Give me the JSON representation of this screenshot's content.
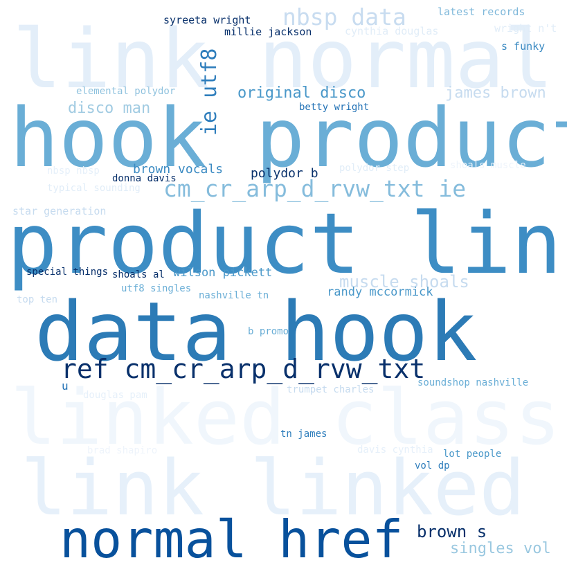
{
  "words": {
    "link_normal": {
      "text": "link normal",
      "color": "#e3eef9"
    },
    "hook_product": {
      "text": "hook product",
      "color": "#6aaed6"
    },
    "product_link": {
      "text": "product link",
      "color": "#3d8dc4"
    },
    "data_hook": {
      "text": "data hook",
      "color": "#2c7bb6"
    },
    "linked_class": {
      "text": "linked class",
      "color": "#f0f6fc"
    },
    "link_linked": {
      "text": "link linked",
      "color": "#e6f0fa"
    },
    "normal_href": {
      "text": "normal href",
      "color": "#08519c"
    },
    "ref_cm": {
      "text": "ref cm_cr_arp_d_rvw_txt",
      "color": "#08306b"
    },
    "cm_ie": {
      "text": "cm_cr_arp_d_rvw_txt ie",
      "color": "#85bcdc"
    },
    "ie_utf8": {
      "text": "ie utf8",
      "color": "#2f7ebc"
    },
    "nbsp_data": {
      "text": "nbsp data",
      "color": "#c8dcf0"
    },
    "original_disco": {
      "text": "original disco",
      "color": "#4a98c9"
    },
    "james_brown": {
      "text": "james brown",
      "color": "#c6dbef"
    },
    "disco_man": {
      "text": "disco man",
      "color": "#a1cbe2"
    },
    "muscle_shoals": {
      "text": "muscle shoals",
      "color": "#c6dbef"
    },
    "brown_s": {
      "text": "brown s",
      "color": "#08306b"
    },
    "singles_vol": {
      "text": "singles vol",
      "color": "#9ac8e0"
    },
    "brown_vocals": {
      "text": "brown vocals",
      "color": "#3a8ac2"
    },
    "polydor_b": {
      "text": "polydor b",
      "color": "#08306b"
    },
    "wilson_pickett": {
      "text": "wilson pickett",
      "color": "#4a98c9"
    },
    "randy_mccormick": {
      "text": "randy mccormick",
      "color": "#4a98c9"
    },
    "syreeta_wright": {
      "text": "syreeta wright",
      "color": "#08306b"
    },
    "millie_jackson": {
      "text": "millie jackson",
      "color": "#08306b"
    },
    "latest_records": {
      "text": "latest records",
      "color": "#7fb8da"
    },
    "cynthia_douglas": {
      "text": "cynthia douglas",
      "color": "#e1edf8"
    },
    "wright_nt": {
      "text": "wright n't",
      "color": "#e1edf8"
    },
    "s_funky": {
      "text": "s funky",
      "color": "#3a8ac2"
    },
    "elemental_polydor": {
      "text": "elemental polydor",
      "color": "#8fc2de"
    },
    "betty_wright": {
      "text": "betty wright",
      "color": "#2171b5"
    },
    "nbsp_nbsp": {
      "text": "nbsp nbsp",
      "color": "#e6f0fa"
    },
    "donna_davis": {
      "text": "donna davis",
      "color": "#08306b"
    },
    "polydor_step": {
      "text": "polydor step",
      "color": "#e1edf8"
    },
    "shoals_muscle": {
      "text": "shoals muscle",
      "color": "#eef4fb"
    },
    "typical_sounding": {
      "text": "typical sounding",
      "color": "#e1edf8"
    },
    "star_generation": {
      "text": "star generation",
      "color": "#c6dbef"
    },
    "special_things": {
      "text": "special things",
      "color": "#08306b"
    },
    "shoals_al": {
      "text": "shoals al",
      "color": "#08306b"
    },
    "utf8_singles": {
      "text": "utf8 singles",
      "color": "#6aaed6"
    },
    "top_ten": {
      "text": "top ten",
      "color": "#c6dbef"
    },
    "nashville_tn": {
      "text": "nashville tn",
      "color": "#6aaed6"
    },
    "b_promo": {
      "text": "b promo",
      "color": "#6aaed6"
    },
    "u": {
      "text": "u",
      "color": "#2171b5"
    },
    "douglas_pam": {
      "text": "douglas pam",
      "color": "#e6f0fa"
    },
    "trumpet_charles": {
      "text": "trumpet charles",
      "color": "#c6dbef"
    },
    "soundshop_nashville": {
      "text": "soundshop nashville",
      "color": "#6aaed6"
    },
    "tn_james": {
      "text": "tn james",
      "color": "#2f7ebc"
    },
    "brad_shapiro": {
      "text": "brad shapiro",
      "color": "#eef4fb"
    },
    "davis_cynthia": {
      "text": "davis cynthia",
      "color": "#e6f0fa"
    },
    "lot_people": {
      "text": "lot people",
      "color": "#4a98c9"
    },
    "vol_dp": {
      "text": "vol dp",
      "color": "#2f7ebc"
    }
  }
}
